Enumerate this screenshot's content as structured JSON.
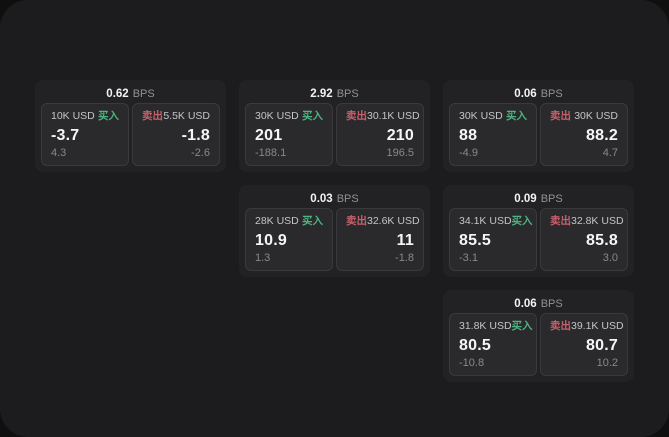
{
  "labels": {
    "bps_unit": "BPS",
    "buy": "买入",
    "sell": "卖出"
  },
  "colors": {
    "buy_green": "#4db380",
    "sell_red": "#c75f6b",
    "surface": "#1c1c1e",
    "card": "#222224",
    "panel": "#2a2a2d"
  },
  "cards": [
    {
      "bps": "0.62",
      "buy": {
        "amount": "10K USD",
        "price": "-3.7",
        "sub": "4.3"
      },
      "sell": {
        "amount": "5.5K USD",
        "price": "-1.8",
        "sub": "-2.6"
      }
    },
    {
      "bps": "2.92",
      "buy": {
        "amount": "30K USD",
        "price": "201",
        "sub": "-188.1"
      },
      "sell": {
        "amount": "30.1K USD",
        "price": "210",
        "sub": "196.5"
      }
    },
    {
      "bps": "0.06",
      "buy": {
        "amount": "30K USD",
        "price": "88",
        "sub": "-4.9"
      },
      "sell": {
        "amount": "30K USD",
        "price": "88.2",
        "sub": "4.7"
      }
    },
    {
      "bps": "0.03",
      "buy": {
        "amount": "28K USD",
        "price": "10.9",
        "sub": "1.3"
      },
      "sell": {
        "amount": "32.6K USD",
        "price": "11",
        "sub": "-1.8"
      }
    },
    {
      "bps": "0.09",
      "buy": {
        "amount": "34.1K USD",
        "price": "85.5",
        "sub": "-3.1"
      },
      "sell": {
        "amount": "32.8K USD",
        "price": "85.8",
        "sub": "3.0"
      }
    },
    {
      "bps": "0.06",
      "buy": {
        "amount": "31.8K USD",
        "price": "80.5",
        "sub": "-10.8"
      },
      "sell": {
        "amount": "39.1K USD",
        "price": "80.7",
        "sub": "10.2"
      }
    }
  ]
}
